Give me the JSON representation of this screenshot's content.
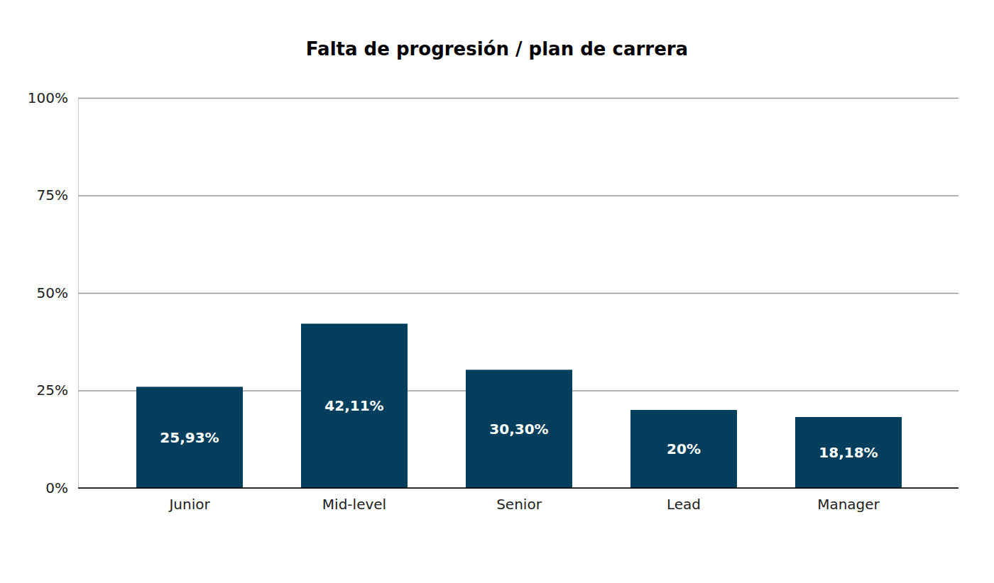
{
  "chart_data": {
    "type": "bar",
    "title": "Falta de progresión / plan de carrera",
    "categories": [
      "Junior",
      "Mid-level",
      "Senior",
      "Lead",
      "Manager"
    ],
    "values": [
      25.93,
      42.11,
      30.3,
      20,
      18.18
    ],
    "value_labels": [
      "25,93%",
      "42,11%",
      "30,30%",
      "20%",
      "18,18%"
    ],
    "color": "#033f5c",
    "ylim": [
      0,
      100
    ],
    "yticks": [
      {
        "value": 0,
        "label": "0%"
      },
      {
        "value": 25,
        "label": "25%"
      },
      {
        "value": 50,
        "label": "50%"
      },
      {
        "value": 75,
        "label": "75%"
      },
      {
        "value": 100,
        "label": "100%"
      }
    ],
    "grid": true,
    "data_labels": true
  }
}
